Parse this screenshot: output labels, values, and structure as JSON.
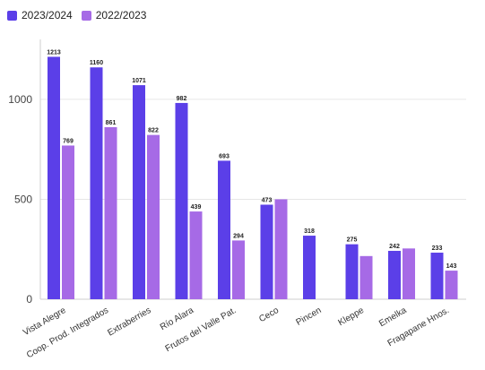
{
  "chart_data": {
    "type": "bar",
    "categories": [
      "Vista Alegre",
      "Coop. Prod. Integrados",
      "Extraberries",
      "Río Alara",
      "Frutos del Valle Pat.",
      "Ceco",
      "Pincen",
      "Kleppe",
      "Emelka",
      "Fragapane Hnos."
    ],
    "series": [
      {
        "name": "2023/2024",
        "color": "#5b3fe8",
        "values": [
          1213,
          1160,
          1071,
          982,
          693,
          473,
          318,
          275,
          242,
          233
        ]
      },
      {
        "name": "2022/2023",
        "color": "#a66ae6",
        "values": [
          769,
          861,
          822,
          439,
          294,
          500,
          null,
          216,
          254,
          143
        ]
      }
    ],
    "data_labels": [
      [
        "1213",
        "1160",
        "1071",
        "982",
        "693",
        "473",
        "318",
        "275",
        "242",
        "233"
      ],
      [
        "769",
        "861",
        "822",
        "439",
        "294",
        "",
        "",
        "",
        "",
        "143"
      ]
    ],
    "yticks": [
      "0",
      "500",
      "1000"
    ],
    "ylim": [
      0,
      1300
    ],
    "grid": true,
    "legend_position": "top-left"
  }
}
